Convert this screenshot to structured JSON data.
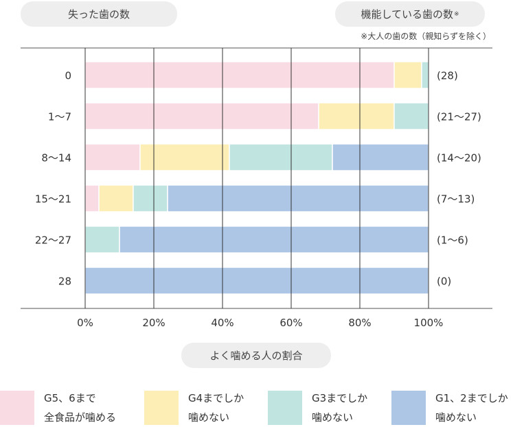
{
  "header": {
    "left_label": "失った歯の数",
    "right_label": "機能している歯の数",
    "right_mark": "※",
    "note": "※大人の歯の数（親知らずを除く）"
  },
  "bottom_label": "よく噛める人の割合",
  "colors": {
    "G5_6": "#f9dbe3",
    "G4": "#fdeeb6",
    "G3": "#c0e4df",
    "G1_2": "#aec6e6",
    "grid": "#333333"
  },
  "chart_data": {
    "type": "bar",
    "orientation": "horizontal",
    "stacked": true,
    "categories": [
      "0",
      "1〜7",
      "8〜14",
      "15〜21",
      "22〜27",
      "28"
    ],
    "right_labels": [
      "(28)",
      "(21〜27)",
      "(14〜20)",
      "(7〜13)",
      "(1〜6)",
      "(0)"
    ],
    "xlim": [
      0,
      100
    ],
    "xticks": [
      "0%",
      "20%",
      "40%",
      "60%",
      "80%",
      "100%"
    ],
    "xlabel": "よく噛める人の割合",
    "series": [
      {
        "name": "G5、6まで全食品が噛める",
        "color": "#f9dbe3",
        "values": [
          90,
          68,
          16,
          4,
          0,
          0
        ]
      },
      {
        "name": "G4までしか噛めない",
        "color": "#fdeeb6",
        "values": [
          8,
          22,
          26,
          10,
          0,
          0
        ]
      },
      {
        "name": "G3までしか噛めない",
        "color": "#c0e4df",
        "values": [
          2,
          10,
          30,
          10,
          10,
          0
        ]
      },
      {
        "name": "G1、2までしか噛めない",
        "color": "#aec6e6",
        "values": [
          0,
          0,
          28,
          76,
          90,
          100
        ]
      }
    ]
  },
  "legend": [
    {
      "line1": "G5、6まで",
      "line2": "全食品が噛める",
      "color": "#f9dbe3"
    },
    {
      "line1": "G4までしか",
      "line2": "噛めない",
      "color": "#fdeeb6"
    },
    {
      "line1": "G3までしか",
      "line2": "噛めない",
      "color": "#c0e4df"
    },
    {
      "line1": "G1、2までしか",
      "line2": "噛めない",
      "color": "#aec6e6"
    }
  ]
}
